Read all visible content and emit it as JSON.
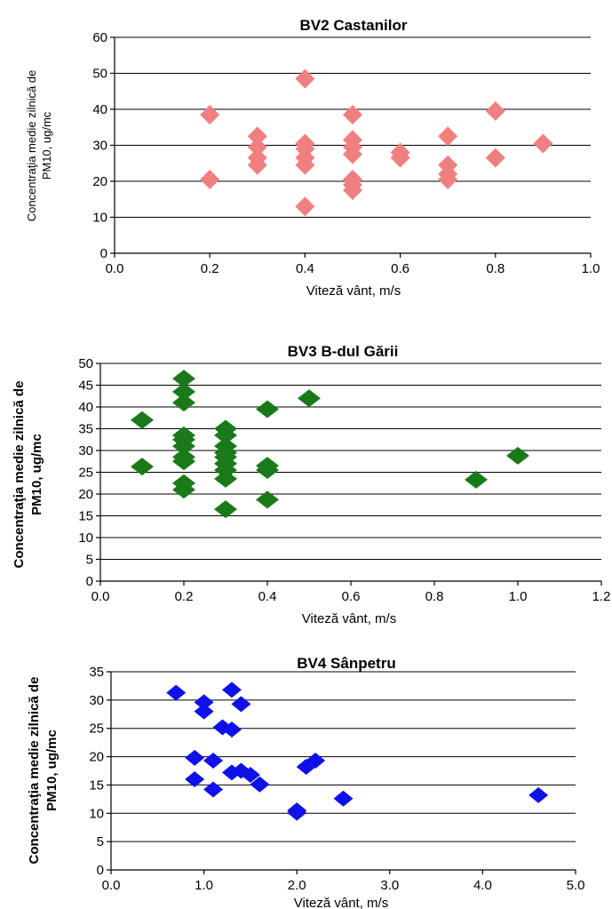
{
  "chart_data": [
    {
      "type": "scatter",
      "title": "BV2 Castanilor",
      "xlabel": "Viteză vânt, m/s",
      "ylabel_line1": "Concentraţia medie zilnică de",
      "ylabel_line2": "PM10, ug/mc",
      "xlim": [
        0,
        1.0
      ],
      "ylim": [
        0,
        60
      ],
      "xticks": [
        "0.0",
        "0.2",
        "0.4",
        "0.6",
        "0.8",
        "1.0"
      ],
      "yticks": [
        "0",
        "10",
        "20",
        "30",
        "40",
        "50",
        "60"
      ],
      "grid": "horizontal",
      "marker": "diamond",
      "color": "#f08080",
      "points": [
        {
          "x": 0.2,
          "y": 38.5
        },
        {
          "x": 0.2,
          "y": 20.5
        },
        {
          "x": 0.3,
          "y": 32.5
        },
        {
          "x": 0.3,
          "y": 29.5
        },
        {
          "x": 0.3,
          "y": 26.5
        },
        {
          "x": 0.3,
          "y": 24.5
        },
        {
          "x": 0.4,
          "y": 48.5
        },
        {
          "x": 0.4,
          "y": 30.5
        },
        {
          "x": 0.4,
          "y": 29.0
        },
        {
          "x": 0.4,
          "y": 26.5
        },
        {
          "x": 0.4,
          "y": 24.5
        },
        {
          "x": 0.4,
          "y": 13.0
        },
        {
          "x": 0.5,
          "y": 38.5
        },
        {
          "x": 0.5,
          "y": 31.5
        },
        {
          "x": 0.5,
          "y": 29.5
        },
        {
          "x": 0.5,
          "y": 27.5
        },
        {
          "x": 0.5,
          "y": 20.5
        },
        {
          "x": 0.5,
          "y": 19.0
        },
        {
          "x": 0.5,
          "y": 17.5
        },
        {
          "x": 0.6,
          "y": 28.0
        },
        {
          "x": 0.6,
          "y": 26.5
        },
        {
          "x": 0.7,
          "y": 32.5
        },
        {
          "x": 0.7,
          "y": 24.5
        },
        {
          "x": 0.7,
          "y": 22.0
        },
        {
          "x": 0.7,
          "y": 20.5
        },
        {
          "x": 0.8,
          "y": 39.5
        },
        {
          "x": 0.8,
          "y": 26.5
        },
        {
          "x": 0.9,
          "y": 30.5
        }
      ]
    },
    {
      "type": "scatter",
      "title": "BV3 B-dul Gării",
      "xlabel": "Viteză vânt,  m/s",
      "ylabel_line1": "Concentraţia medie zilnică de",
      "ylabel_line2": "PM10, ug/mc",
      "xlim": [
        0,
        1.2
      ],
      "ylim": [
        0,
        50
      ],
      "xticks": [
        "0.0",
        "0.2",
        "0.4",
        "0.6",
        "0.8",
        "1.0",
        "1.2"
      ],
      "yticks": [
        "0",
        "5",
        "10",
        "15",
        "20",
        "25",
        "30",
        "35",
        "40",
        "45",
        "50"
      ],
      "grid": "horizontal",
      "marker": "diamond",
      "color": "#1a7a1a",
      "points": [
        {
          "x": 0.1,
          "y": 37.0
        },
        {
          "x": 0.1,
          "y": 26.3
        },
        {
          "x": 0.2,
          "y": 46.5
        },
        {
          "x": 0.2,
          "y": 43.5
        },
        {
          "x": 0.2,
          "y": 41.0
        },
        {
          "x": 0.2,
          "y": 33.5
        },
        {
          "x": 0.2,
          "y": 32.5
        },
        {
          "x": 0.2,
          "y": 31.0
        },
        {
          "x": 0.2,
          "y": 28.5
        },
        {
          "x": 0.2,
          "y": 27.5
        },
        {
          "x": 0.2,
          "y": 22.5
        },
        {
          "x": 0.2,
          "y": 21.0
        },
        {
          "x": 0.3,
          "y": 35.0
        },
        {
          "x": 0.3,
          "y": 33.5
        },
        {
          "x": 0.3,
          "y": 31.0
        },
        {
          "x": 0.3,
          "y": 29.5
        },
        {
          "x": 0.3,
          "y": 28.5
        },
        {
          "x": 0.3,
          "y": 27.0
        },
        {
          "x": 0.3,
          "y": 25.5
        },
        {
          "x": 0.3,
          "y": 23.5
        },
        {
          "x": 0.3,
          "y": 16.5
        },
        {
          "x": 0.4,
          "y": 39.5
        },
        {
          "x": 0.4,
          "y": 26.5
        },
        {
          "x": 0.4,
          "y": 25.5
        },
        {
          "x": 0.4,
          "y": 18.7
        },
        {
          "x": 0.5,
          "y": 42.0
        },
        {
          "x": 0.9,
          "y": 23.3
        },
        {
          "x": 1.0,
          "y": 28.8
        }
      ]
    },
    {
      "type": "scatter",
      "title": "BV4 Sânpetru",
      "xlabel": "Viteză vânt, m/s",
      "ylabel_line1": "Concentraţia medie zilnică de",
      "ylabel_line2": "PM10, ug/mc",
      "xlim": [
        0,
        5.0
      ],
      "ylim": [
        0,
        35
      ],
      "xticks": [
        "0.0",
        "1.0",
        "2.0",
        "3.0",
        "4.0",
        "5.0"
      ],
      "yticks": [
        "0",
        "5",
        "10",
        "15",
        "20",
        "25",
        "30",
        "35"
      ],
      "grid": "horizontal",
      "marker": "diamond",
      "color": "#1010e8",
      "points": [
        {
          "x": 0.7,
          "y": 31.3
        },
        {
          "x": 0.9,
          "y": 19.8
        },
        {
          "x": 0.9,
          "y": 16.0
        },
        {
          "x": 1.0,
          "y": 29.6
        },
        {
          "x": 1.0,
          "y": 28.0
        },
        {
          "x": 1.1,
          "y": 19.3
        },
        {
          "x": 1.1,
          "y": 14.2
        },
        {
          "x": 1.2,
          "y": 25.2
        },
        {
          "x": 1.3,
          "y": 31.8
        },
        {
          "x": 1.3,
          "y": 24.8
        },
        {
          "x": 1.3,
          "y": 17.2
        },
        {
          "x": 1.4,
          "y": 29.3
        },
        {
          "x": 1.4,
          "y": 17.5
        },
        {
          "x": 1.5,
          "y": 16.8
        },
        {
          "x": 1.6,
          "y": 15.1
        },
        {
          "x": 2.0,
          "y": 10.5
        },
        {
          "x": 2.0,
          "y": 10.1
        },
        {
          "x": 2.1,
          "y": 18.2
        },
        {
          "x": 2.2,
          "y": 19.3
        },
        {
          "x": 2.5,
          "y": 12.6
        },
        {
          "x": 4.6,
          "y": 13.2
        }
      ]
    }
  ]
}
